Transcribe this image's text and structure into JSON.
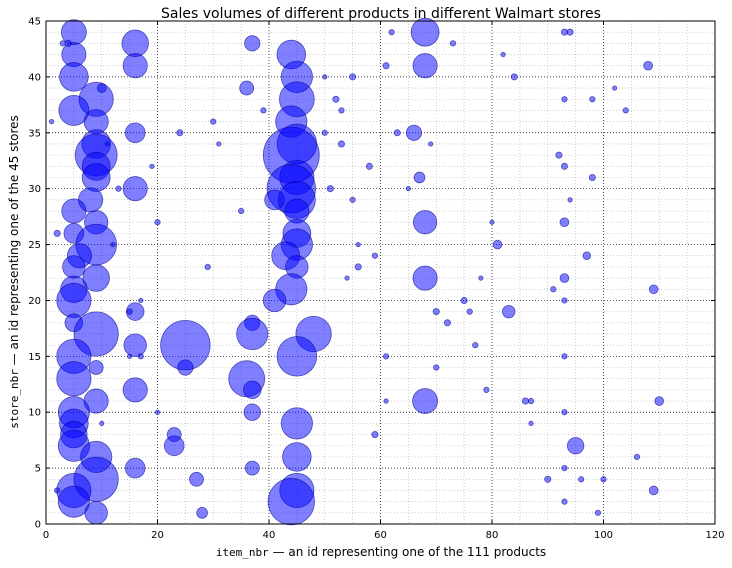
{
  "chart_data": {
    "type": "scatter",
    "title": "Sales volumes of different products in different Walmart stores",
    "xlabel": {
      "code": "item_nbr",
      "text": " — an id representing one of the 111 products"
    },
    "ylabel": {
      "code": "store_nbr",
      "text": " — an id representing one of the 45 stores"
    },
    "xlim": [
      0,
      120
    ],
    "ylim": [
      0,
      45
    ],
    "x_ticks": [
      0,
      20,
      40,
      60,
      80,
      100,
      120
    ],
    "y_ticks": [
      0,
      5,
      10,
      15,
      20,
      25,
      30,
      35,
      40,
      45
    ],
    "grid": true,
    "colors": {
      "marker_fill": "#0000ff",
      "marker_edge": "#00008b",
      "marker_alpha": 0.5,
      "grid": "#b0b0b0"
    },
    "size_unit": "relative sales volume (bubble area)",
    "points": [
      {
        "x": 5,
        "y": 44,
        "s": 3.2
      },
      {
        "x": 16,
        "y": 43,
        "s": 3.6
      },
      {
        "x": 37,
        "y": 43,
        "s": 1.2
      },
      {
        "x": 44,
        "y": 42,
        "s": 4.2
      },
      {
        "x": 68,
        "y": 44,
        "s": 4.0
      },
      {
        "x": 5,
        "y": 42,
        "s": 3.0
      },
      {
        "x": 16,
        "y": 41,
        "s": 3.0
      },
      {
        "x": 45,
        "y": 40,
        "s": 5.0
      },
      {
        "x": 68,
        "y": 41,
        "s": 3.0
      },
      {
        "x": 5,
        "y": 40,
        "s": 4.2
      },
      {
        "x": 36,
        "y": 39,
        "s": 1.0
      },
      {
        "x": 9,
        "y": 38,
        "s": 6.0
      },
      {
        "x": 45,
        "y": 38,
        "s": 6.2
      },
      {
        "x": 5,
        "y": 37,
        "s": 4.6
      },
      {
        "x": 9,
        "y": 36,
        "s": 3.0
      },
      {
        "x": 44,
        "y": 36,
        "s": 5.0
      },
      {
        "x": 16,
        "y": 35,
        "s": 2.0
      },
      {
        "x": 66,
        "y": 35,
        "s": 1.2
      },
      {
        "x": 9,
        "y": 34,
        "s": 4.2
      },
      {
        "x": 45,
        "y": 34,
        "s": 8.0
      },
      {
        "x": 9,
        "y": 33,
        "s": 9.0
      },
      {
        "x": 44,
        "y": 33,
        "s": 16.0
      },
      {
        "x": 9,
        "y": 32,
        "s": 4.0
      },
      {
        "x": 9,
        "y": 31,
        "s": 4.0
      },
      {
        "x": 45,
        "y": 31,
        "s": 6.0
      },
      {
        "x": 67,
        "y": 31,
        "s": 0.6
      },
      {
        "x": 16,
        "y": 30,
        "s": 3.0
      },
      {
        "x": 44,
        "y": 30,
        "s": 12.0
      },
      {
        "x": 8,
        "y": 29,
        "s": 3.0
      },
      {
        "x": 41,
        "y": 29,
        "s": 2.0
      },
      {
        "x": 45,
        "y": 29,
        "s": 7.0
      },
      {
        "x": 5,
        "y": 28,
        "s": 3.0
      },
      {
        "x": 45,
        "y": 28,
        "s": 3.0
      },
      {
        "x": 9,
        "y": 27,
        "s": 2.8
      },
      {
        "x": 68,
        "y": 27,
        "s": 2.8
      },
      {
        "x": 5,
        "y": 26,
        "s": 2.0
      },
      {
        "x": 45,
        "y": 26,
        "s": 4.0
      },
      {
        "x": 9,
        "y": 25,
        "s": 8.5
      },
      {
        "x": 45,
        "y": 25,
        "s": 5.0
      },
      {
        "x": 81,
        "y": 25,
        "s": 0.4
      },
      {
        "x": 6,
        "y": 24,
        "s": 3.0
      },
      {
        "x": 43,
        "y": 24,
        "s": 4.0
      },
      {
        "x": 5,
        "y": 23,
        "s": 2.6
      },
      {
        "x": 45,
        "y": 23,
        "s": 2.6
      },
      {
        "x": 9,
        "y": 22,
        "s": 3.6
      },
      {
        "x": 68,
        "y": 22,
        "s": 3.0
      },
      {
        "x": 5,
        "y": 21,
        "s": 3.6
      },
      {
        "x": 44,
        "y": 21,
        "s": 5.0
      },
      {
        "x": 5,
        "y": 20,
        "s": 6.0
      },
      {
        "x": 41,
        "y": 20,
        "s": 2.6
      },
      {
        "x": 16,
        "y": 19,
        "s": 1.6
      },
      {
        "x": 83,
        "y": 19,
        "s": 0.8
      },
      {
        "x": 5,
        "y": 18,
        "s": 1.6
      },
      {
        "x": 37,
        "y": 18,
        "s": 1.2
      },
      {
        "x": 9,
        "y": 17,
        "s": 10.0
      },
      {
        "x": 37,
        "y": 17,
        "s": 5.0
      },
      {
        "x": 48,
        "y": 17,
        "s": 6.4
      },
      {
        "x": 16,
        "y": 16,
        "s": 2.6
      },
      {
        "x": 25,
        "y": 16,
        "s": 12.5
      },
      {
        "x": 5,
        "y": 15,
        "s": 6.0
      },
      {
        "x": 45,
        "y": 15,
        "s": 8.0
      },
      {
        "x": 9,
        "y": 14,
        "s": 1.0
      },
      {
        "x": 25,
        "y": 14,
        "s": 1.2
      },
      {
        "x": 5,
        "y": 13,
        "s": 6.0
      },
      {
        "x": 36,
        "y": 13,
        "s": 6.6
      },
      {
        "x": 16,
        "y": 12,
        "s": 3.0
      },
      {
        "x": 37,
        "y": 12,
        "s": 1.6
      },
      {
        "x": 9,
        "y": 11,
        "s": 3.0
      },
      {
        "x": 68,
        "y": 11,
        "s": 3.2
      },
      {
        "x": 5,
        "y": 10,
        "s": 5.0
      },
      {
        "x": 37,
        "y": 10,
        "s": 1.4
      },
      {
        "x": 5,
        "y": 9,
        "s": 4.2
      },
      {
        "x": 45,
        "y": 9,
        "s": 5.0
      },
      {
        "x": 5,
        "y": 8,
        "s": 3.6
      },
      {
        "x": 23,
        "y": 8,
        "s": 1.0
      },
      {
        "x": 5,
        "y": 7,
        "s": 5.0
      },
      {
        "x": 23,
        "y": 7,
        "s": 2.0
      },
      {
        "x": 95,
        "y": 7,
        "s": 1.4
      },
      {
        "x": 9,
        "y": 6,
        "s": 5.0
      },
      {
        "x": 45,
        "y": 6,
        "s": 4.2
      },
      {
        "x": 16,
        "y": 5,
        "s": 2.0
      },
      {
        "x": 37,
        "y": 5,
        "s": 1.0
      },
      {
        "x": 9,
        "y": 4,
        "s": 10.0
      },
      {
        "x": 27,
        "y": 4,
        "s": 1.0
      },
      {
        "x": 5,
        "y": 3,
        "s": 6.0
      },
      {
        "x": 45,
        "y": 3,
        "s": 6.0
      },
      {
        "x": 5,
        "y": 2,
        "s": 5.0
      },
      {
        "x": 44,
        "y": 2,
        "s": 11.0
      },
      {
        "x": 9,
        "y": 1,
        "s": 2.6
      },
      {
        "x": 28,
        "y": 1,
        "s": 0.6
      },
      {
        "x": 1,
        "y": 36,
        "s": 0.1
      },
      {
        "x": 3,
        "y": 43,
        "s": 0.15
      },
      {
        "x": 4,
        "y": 43,
        "s": 0.2
      },
      {
        "x": 2,
        "y": 26,
        "s": 0.2
      },
      {
        "x": 2,
        "y": 3,
        "s": 0.15
      },
      {
        "x": 10,
        "y": 39,
        "s": 0.4
      },
      {
        "x": 11,
        "y": 34,
        "s": 0.1
      },
      {
        "x": 12,
        "y": 25,
        "s": 0.1
      },
      {
        "x": 13,
        "y": 30,
        "s": 0.15
      },
      {
        "x": 10,
        "y": 9,
        "s": 0.1
      },
      {
        "x": 15,
        "y": 19,
        "s": 0.15
      },
      {
        "x": 17,
        "y": 20,
        "s": 0.1
      },
      {
        "x": 15,
        "y": 15,
        "s": 0.1
      },
      {
        "x": 17,
        "y": 15,
        "s": 0.15
      },
      {
        "x": 19,
        "y": 32,
        "s": 0.1
      },
      {
        "x": 20,
        "y": 27,
        "s": 0.15
      },
      {
        "x": 20,
        "y": 10,
        "s": 0.1
      },
      {
        "x": 24,
        "y": 35,
        "s": 0.2
      },
      {
        "x": 29,
        "y": 23,
        "s": 0.15
      },
      {
        "x": 30,
        "y": 36,
        "s": 0.15
      },
      {
        "x": 31,
        "y": 34,
        "s": 0.1
      },
      {
        "x": 35,
        "y": 28,
        "s": 0.15
      },
      {
        "x": 39,
        "y": 37,
        "s": 0.15
      },
      {
        "x": 50,
        "y": 40,
        "s": 0.1
      },
      {
        "x": 50,
        "y": 35,
        "s": 0.15
      },
      {
        "x": 51,
        "y": 30,
        "s": 0.2
      },
      {
        "x": 52,
        "y": 38,
        "s": 0.2
      },
      {
        "x": 53,
        "y": 37,
        "s": 0.15
      },
      {
        "x": 55,
        "y": 40,
        "s": 0.2
      },
      {
        "x": 53,
        "y": 34,
        "s": 0.2
      },
      {
        "x": 54,
        "y": 22,
        "s": 0.1
      },
      {
        "x": 55,
        "y": 29,
        "s": 0.15
      },
      {
        "x": 56,
        "y": 25,
        "s": 0.1
      },
      {
        "x": 56,
        "y": 23,
        "s": 0.2
      },
      {
        "x": 58,
        "y": 32,
        "s": 0.2
      },
      {
        "x": 59,
        "y": 24,
        "s": 0.15
      },
      {
        "x": 59,
        "y": 8,
        "s": 0.2
      },
      {
        "x": 61,
        "y": 41,
        "s": 0.2
      },
      {
        "x": 62,
        "y": 44,
        "s": 0.15
      },
      {
        "x": 61,
        "y": 11,
        "s": 0.1
      },
      {
        "x": 63,
        "y": 35,
        "s": 0.2
      },
      {
        "x": 61,
        "y": 15,
        "s": 0.15
      },
      {
        "x": 65,
        "y": 30,
        "s": 0.1
      },
      {
        "x": 69,
        "y": 34,
        "s": 0.1
      },
      {
        "x": 70,
        "y": 19,
        "s": 0.2
      },
      {
        "x": 70,
        "y": 14,
        "s": 0.15
      },
      {
        "x": 72,
        "y": 18,
        "s": 0.2
      },
      {
        "x": 73,
        "y": 43,
        "s": 0.15
      },
      {
        "x": 75,
        "y": 20,
        "s": 0.2
      },
      {
        "x": 76,
        "y": 19,
        "s": 0.15
      },
      {
        "x": 77,
        "y": 16,
        "s": 0.15
      },
      {
        "x": 78,
        "y": 22,
        "s": 0.1
      },
      {
        "x": 79,
        "y": 12,
        "s": 0.15
      },
      {
        "x": 80,
        "y": 27,
        "s": 0.1
      },
      {
        "x": 82,
        "y": 42,
        "s": 0.1
      },
      {
        "x": 84,
        "y": 40,
        "s": 0.2
      },
      {
        "x": 86,
        "y": 11,
        "s": 0.2
      },
      {
        "x": 87,
        "y": 11,
        "s": 0.15
      },
      {
        "x": 87,
        "y": 9,
        "s": 0.1
      },
      {
        "x": 90,
        "y": 4,
        "s": 0.2
      },
      {
        "x": 92,
        "y": 33,
        "s": 0.2
      },
      {
        "x": 91,
        "y": 21,
        "s": 0.15
      },
      {
        "x": 93,
        "y": 44,
        "s": 0.2
      },
      {
        "x": 94,
        "y": 44,
        "s": 0.2
      },
      {
        "x": 93,
        "y": 38,
        "s": 0.15
      },
      {
        "x": 93,
        "y": 32,
        "s": 0.2
      },
      {
        "x": 93,
        "y": 27,
        "s": 0.4
      },
      {
        "x": 93,
        "y": 22,
        "s": 0.4
      },
      {
        "x": 93,
        "y": 20,
        "s": 0.15
      },
      {
        "x": 93,
        "y": 15,
        "s": 0.15
      },
      {
        "x": 93,
        "y": 10,
        "s": 0.15
      },
      {
        "x": 93,
        "y": 5,
        "s": 0.15
      },
      {
        "x": 93,
        "y": 2,
        "s": 0.15
      },
      {
        "x": 94,
        "y": 29,
        "s": 0.1
      },
      {
        "x": 96,
        "y": 4,
        "s": 0.15
      },
      {
        "x": 97,
        "y": 24,
        "s": 0.3
      },
      {
        "x": 98,
        "y": 38,
        "s": 0.15
      },
      {
        "x": 98,
        "y": 31,
        "s": 0.2
      },
      {
        "x": 99,
        "y": 1,
        "s": 0.15
      },
      {
        "x": 100,
        "y": 4,
        "s": 0.15
      },
      {
        "x": 102,
        "y": 39,
        "s": 0.1
      },
      {
        "x": 104,
        "y": 37,
        "s": 0.15
      },
      {
        "x": 106,
        "y": 6,
        "s": 0.15
      },
      {
        "x": 108,
        "y": 41,
        "s": 0.4
      },
      {
        "x": 109,
        "y": 21,
        "s": 0.4
      },
      {
        "x": 109,
        "y": 3,
        "s": 0.4
      },
      {
        "x": 110,
        "y": 11,
        "s": 0.4
      }
    ]
  }
}
